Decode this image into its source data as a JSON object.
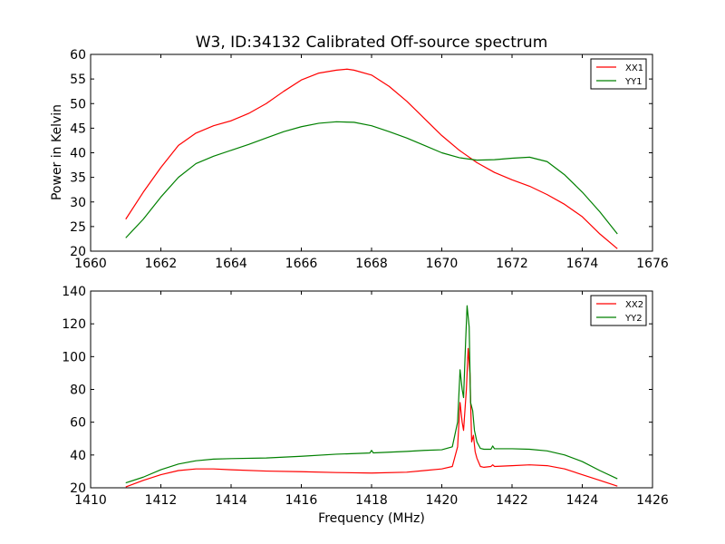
{
  "chart_data": [
    {
      "type": "line",
      "title": "W3, ID:34132 Calibrated Off-source spectrum",
      "xlabel": "",
      "ylabel": "Power in Kelvin",
      "xlim": [
        1660,
        1676
      ],
      "ylim": [
        20,
        60
      ],
      "xticks": [
        1660,
        1662,
        1664,
        1666,
        1668,
        1670,
        1672,
        1674,
        1676
      ],
      "yticks": [
        20,
        25,
        30,
        35,
        40,
        45,
        50,
        55,
        60
      ],
      "grid": false,
      "legend_position": "top-right",
      "series": [
        {
          "name": "XX1",
          "color": "#ff0000",
          "x": [
            1661.0,
            1661.5,
            1662.0,
            1662.5,
            1663.0,
            1663.5,
            1664.0,
            1664.5,
            1665.0,
            1665.5,
            1666.0,
            1666.5,
            1667.0,
            1667.3,
            1667.5,
            1668.0,
            1668.5,
            1669.0,
            1669.5,
            1670.0,
            1670.5,
            1671.0,
            1671.5,
            1672.0,
            1672.5,
            1673.0,
            1673.5,
            1674.0,
            1674.5,
            1675.0
          ],
          "y": [
            26.5,
            32.0,
            37.0,
            41.5,
            44.0,
            45.5,
            46.5,
            48.0,
            50.0,
            52.5,
            54.8,
            56.2,
            56.8,
            57.0,
            56.8,
            55.8,
            53.5,
            50.5,
            47.0,
            43.5,
            40.5,
            38.0,
            36.0,
            34.5,
            33.2,
            31.5,
            29.5,
            27.0,
            23.5,
            20.5
          ]
        },
        {
          "name": "YY1",
          "color": "#008000",
          "x": [
            1661.0,
            1661.5,
            1662.0,
            1662.5,
            1663.0,
            1663.5,
            1664.0,
            1664.5,
            1665.0,
            1665.5,
            1666.0,
            1666.5,
            1667.0,
            1667.5,
            1668.0,
            1668.5,
            1669.0,
            1669.5,
            1670.0,
            1670.5,
            1671.0,
            1671.5,
            1672.0,
            1672.5,
            1673.0,
            1673.5,
            1674.0,
            1674.5,
            1675.0
          ],
          "y": [
            22.7,
            26.5,
            31.0,
            35.0,
            37.8,
            39.3,
            40.5,
            41.7,
            43.0,
            44.3,
            45.3,
            46.0,
            46.3,
            46.2,
            45.5,
            44.3,
            43.0,
            41.5,
            40.0,
            39.0,
            38.5,
            38.6,
            38.9,
            39.1,
            38.2,
            35.5,
            32.0,
            28.0,
            23.5
          ]
        }
      ]
    },
    {
      "type": "line",
      "title": "",
      "xlabel": "Frequency (MHz)",
      "ylabel": "",
      "xlim": [
        1410,
        1426
      ],
      "ylim": [
        20,
        140
      ],
      "xticks": [
        1410,
        1412,
        1414,
        1416,
        1418,
        1420,
        1422,
        1424,
        1426
      ],
      "yticks": [
        20,
        40,
        60,
        80,
        100,
        120,
        140
      ],
      "grid": false,
      "legend_position": "top-right",
      "series": [
        {
          "name": "XX2",
          "color": "#ff0000",
          "x": [
            1411.0,
            1411.5,
            1412.0,
            1412.5,
            1413.0,
            1413.5,
            1414.0,
            1415.0,
            1416.0,
            1417.0,
            1418.0,
            1419.0,
            1419.5,
            1420.0,
            1420.3,
            1420.45,
            1420.52,
            1420.58,
            1420.62,
            1420.7,
            1420.75,
            1420.8,
            1420.85,
            1420.9,
            1420.95,
            1421.0,
            1421.1,
            1421.2,
            1421.4,
            1421.45,
            1421.5,
            1422.0,
            1422.5,
            1423.0,
            1423.5,
            1424.0,
            1424.5,
            1425.0
          ],
          "y": [
            20.5,
            24.5,
            28.0,
            30.5,
            31.5,
            31.5,
            31.0,
            30.2,
            29.8,
            29.3,
            29.0,
            29.5,
            30.5,
            31.5,
            33.0,
            45.0,
            72.0,
            60.0,
            55.0,
            80.0,
            105.0,
            90.0,
            48.0,
            52.0,
            42.0,
            38.0,
            33.0,
            32.5,
            33.0,
            34.0,
            33.0,
            33.5,
            34.0,
            33.5,
            31.5,
            28.0,
            24.5,
            21.0
          ]
        },
        {
          "name": "YY2",
          "color": "#008000",
          "x": [
            1411.0,
            1411.5,
            1412.0,
            1412.5,
            1413.0,
            1413.5,
            1414.0,
            1415.0,
            1416.0,
            1417.0,
            1417.95,
            1418.0,
            1418.05,
            1419.0,
            1419.5,
            1420.0,
            1420.3,
            1420.45,
            1420.52,
            1420.58,
            1420.62,
            1420.68,
            1420.72,
            1420.78,
            1420.82,
            1420.88,
            1420.93,
            1421.0,
            1421.1,
            1421.2,
            1421.4,
            1421.45,
            1421.5,
            1422.0,
            1422.5,
            1423.0,
            1423.5,
            1424.0,
            1424.5,
            1425.0
          ],
          "y": [
            23.0,
            26.5,
            31.0,
            34.5,
            36.5,
            37.5,
            37.8,
            38.2,
            39.2,
            40.5,
            41.2,
            42.8,
            41.3,
            42.2,
            42.8,
            43.2,
            45.0,
            60.0,
            92.0,
            80.0,
            75.0,
            110.0,
            131.0,
            118.0,
            72.0,
            67.0,
            55.0,
            48.0,
            44.0,
            43.5,
            43.5,
            45.5,
            43.8,
            43.8,
            43.5,
            42.5,
            40.0,
            36.0,
            30.5,
            25.5
          ]
        }
      ]
    }
  ]
}
